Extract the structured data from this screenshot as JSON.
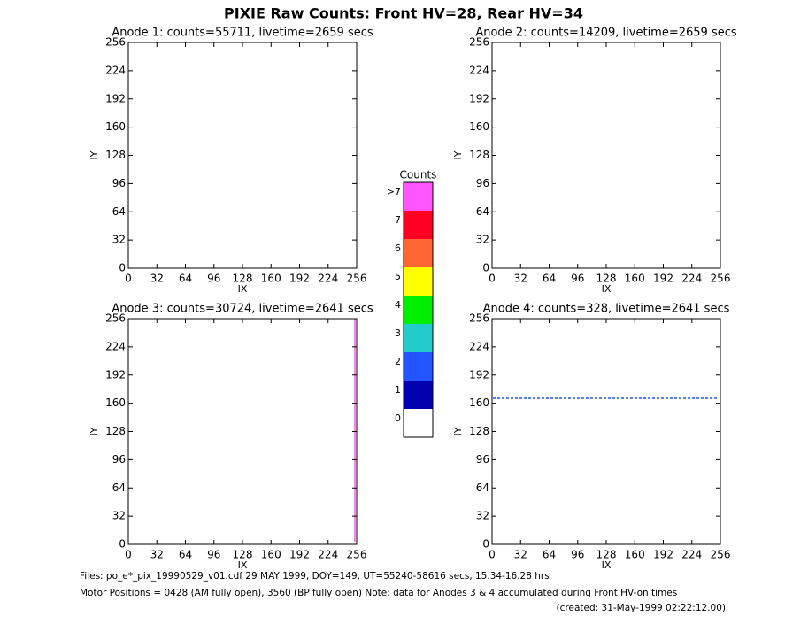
{
  "title": "PIXIE Raw Counts:  Front HV=28, Rear HV=34",
  "chart_data": [
    {
      "type": "heatmap",
      "title": "Anode 1: counts=55711, livetime=2659 secs",
      "x_label": "IX",
      "y_label": "IY",
      "xlim": [
        0,
        256
      ],
      "ylim": [
        0,
        256
      ],
      "xticks": [
        0,
        32,
        64,
        96,
        128,
        160,
        192,
        224,
        256
      ],
      "yticks": [
        0,
        32,
        64,
        96,
        128,
        160,
        192,
        224,
        256
      ]
    },
    {
      "type": "heatmap",
      "title": "Anode 2: counts=14209, livetime=2659 secs",
      "x_label": "IX",
      "y_label": "IY",
      "xlim": [
        0,
        256
      ],
      "ylim": [
        0,
        256
      ],
      "xticks": [
        0,
        32,
        64,
        96,
        128,
        160,
        192,
        224,
        256
      ],
      "yticks": [
        0,
        32,
        64,
        96,
        128,
        160,
        192,
        224,
        256
      ]
    },
    {
      "type": "heatmap",
      "title": "Anode 3: counts=30724, livetime=2641 secs",
      "x_label": "IX",
      "y_label": "IY",
      "xlim": [
        0,
        256
      ],
      "ylim": [
        0,
        256
      ],
      "xticks": [
        0,
        32,
        64,
        96,
        128,
        160,
        192,
        224,
        256
      ],
      "yticks": [
        0,
        32,
        64,
        96,
        128,
        160,
        192,
        224,
        256
      ]
    },
    {
      "type": "heatmap",
      "title": "Anode 4: counts=328, livetime=2641 secs",
      "x_label": "IX",
      "y_label": "IY",
      "xlim": [
        0,
        256
      ],
      "ylim": [
        0,
        256
      ],
      "xticks": [
        0,
        32,
        64,
        96,
        128,
        160,
        192,
        224,
        256
      ],
      "yticks": [
        0,
        32,
        64,
        96,
        128,
        160,
        192,
        224,
        256
      ]
    }
  ],
  "colorbar": {
    "title": "Counts",
    "labels": [
      "0",
      "1",
      "2",
      "3",
      "4",
      "5",
      "6",
      "7",
      ">7"
    ],
    "colors": [
      "#ffffff",
      "#0000b0",
      "#2255ff",
      "#22cccc",
      "#00ee00",
      "#ffff00",
      "#ff6633",
      "#ff0022",
      "#ff55ff"
    ]
  },
  "footer": {
    "files": "Files: po_e*_pix_19990529_v01.cdf    29 MAY 1999, DOY=149, UT=55240-58616 secs, 15.34-16.28 hrs",
    "motor": "Motor Positions = 0428 (AM fully open), 3560 (BP fully open)    Note: data for Anodes 3 & 4 accumulated during Front HV-on times",
    "created": "(created: 31-May-1999 02:22:12.00)"
  }
}
